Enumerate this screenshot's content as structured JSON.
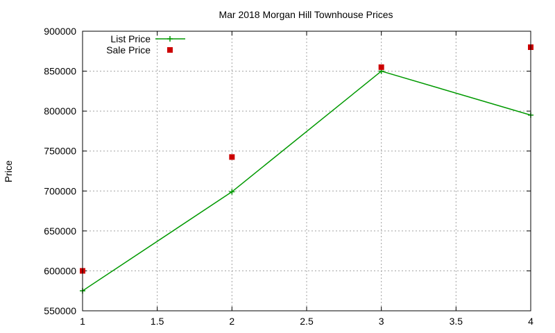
{
  "chart_data": {
    "type": "line",
    "title": "Mar 2018 Morgan Hill Townhouse Prices",
    "xlabel": "",
    "ylabel": "Price",
    "xlim": [
      1,
      4
    ],
    "ylim": [
      550000,
      900000
    ],
    "x_ticks": [
      1,
      1.5,
      2,
      2.5,
      3,
      3.5,
      4
    ],
    "y_ticks": [
      550000,
      600000,
      650000,
      700000,
      750000,
      800000,
      850000,
      900000
    ],
    "grid": true,
    "legend": "top-left",
    "series": [
      {
        "name": "List Price",
        "style": "linespoints",
        "marker": "plus",
        "color": "#009900",
        "x": [
          1,
          2,
          3,
          4
        ],
        "values": [
          575000,
          699000,
          850000,
          795000
        ]
      },
      {
        "name": "Sale Price",
        "style": "points",
        "marker": "square",
        "color": "#cc0000",
        "x": [
          1,
          2,
          3,
          4
        ],
        "values": [
          600000,
          742500,
          855000,
          880000
        ]
      }
    ]
  }
}
